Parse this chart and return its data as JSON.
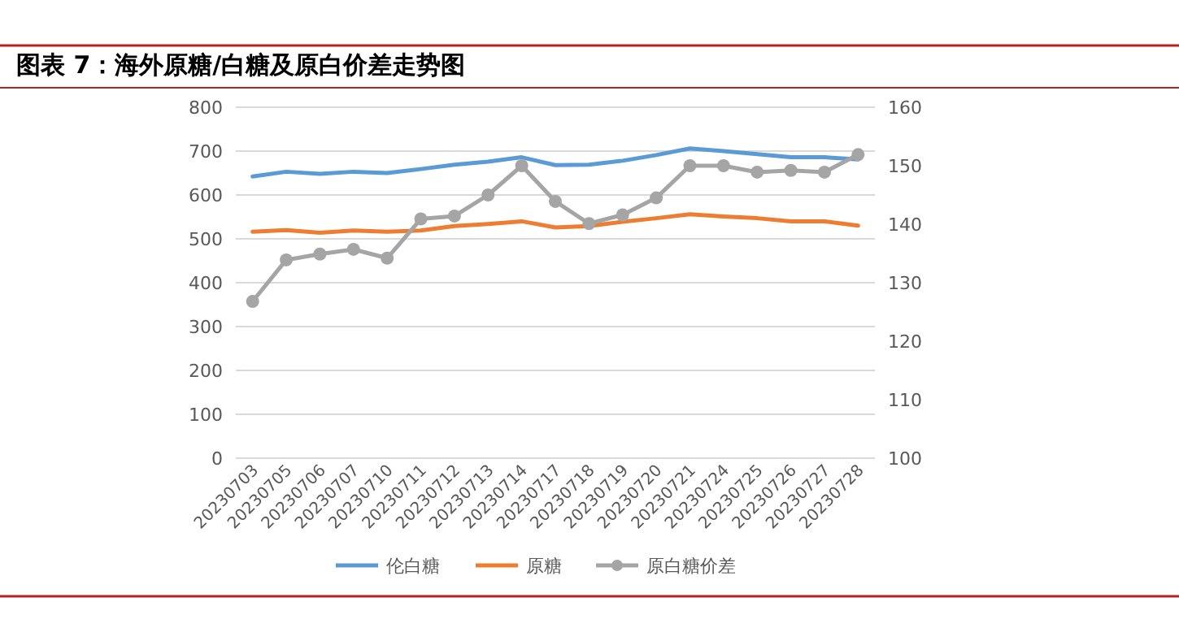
{
  "chart_data": {
    "type": "line",
    "title": "图表 7：海外原糖/白糖及原白价差走势图",
    "categories": [
      "20230703",
      "20230705",
      "20230706",
      "20230707",
      "20230710",
      "20230711",
      "20230712",
      "20230713",
      "20230714",
      "20230717",
      "20230718",
      "20230719",
      "20230720",
      "20230721",
      "20230724",
      "20230725",
      "20230726",
      "20230727",
      "20230728"
    ],
    "series": [
      {
        "name": "伦白糖",
        "color": "#5b9bd5",
        "marker": "none",
        "values": [
          642,
          653,
          648,
          653,
          650,
          659,
          669,
          676,
          686,
          668,
          669,
          678,
          691,
          706,
          700,
          693,
          686,
          686,
          681
        ]
      },
      {
        "name": "原糖",
        "color": "#ed7d31",
        "marker": "none",
        "values": [
          516,
          520,
          514,
          519,
          516,
          519,
          529,
          534,
          540,
          526,
          529,
          539,
          547,
          556,
          551,
          547,
          540,
          540,
          530
        ]
      },
      {
        "name": "原白糖价差",
        "color": "#a5a5a5",
        "marker": "circle",
        "axis": "y2",
        "values": [
          126.8,
          133.9,
          134.9,
          135.7,
          134.2,
          140.9,
          141.4,
          145.0,
          150.0,
          143.9,
          140.1,
          141.6,
          144.5,
          150.0,
          150.0,
          148.9,
          149.2,
          148.9,
          151.9
        ]
      }
    ],
    "ylim": [
      0,
      800
    ],
    "yticks": [
      0,
      100,
      200,
      300,
      400,
      500,
      600,
      700,
      800
    ],
    "y2lim": [
      100,
      160
    ],
    "y2ticks": [
      100,
      110,
      120,
      130,
      140,
      150,
      160
    ],
    "grid": "y",
    "legend": "bottom"
  }
}
